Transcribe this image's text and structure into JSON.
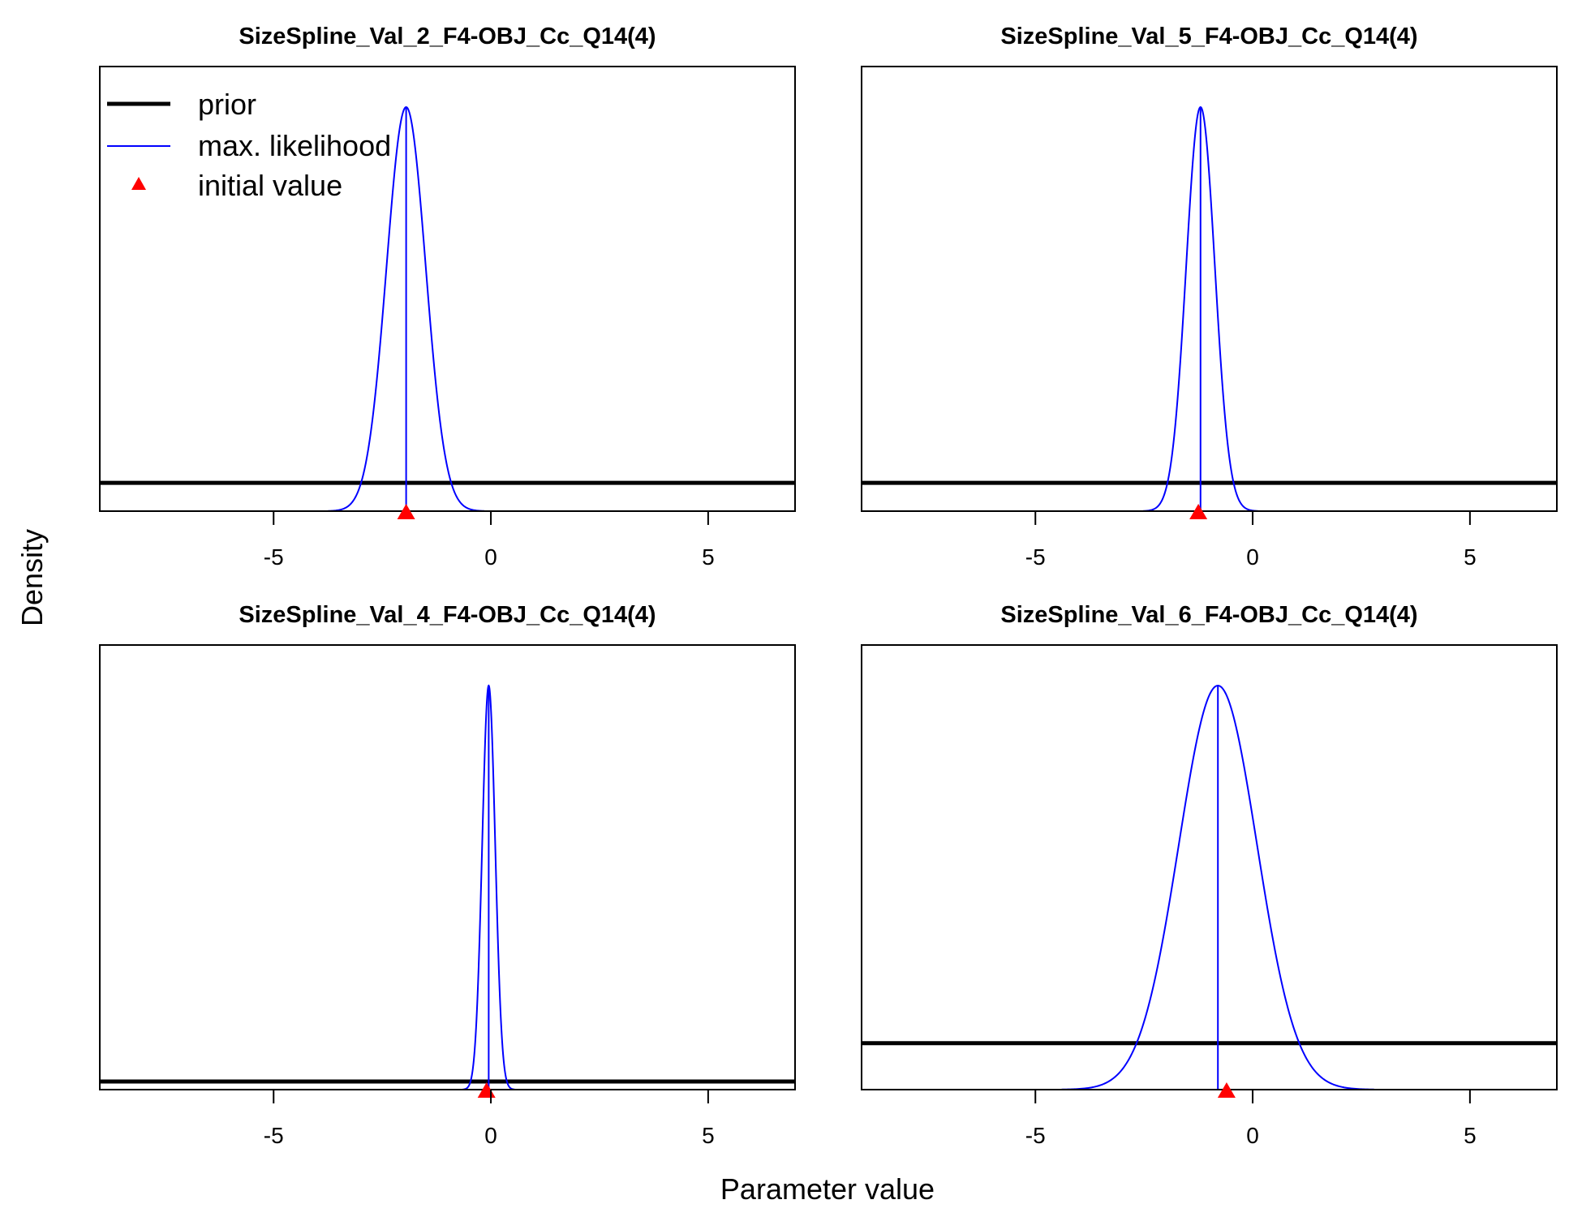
{
  "figure": {
    "ylabel": "Density",
    "xlabel": "Parameter value"
  },
  "legend": {
    "placement": "top-left of first panel",
    "items": [
      {
        "label": "prior",
        "color": "#000000",
        "style": "thick-line"
      },
      {
        "label": "max. likelihood",
        "color": "#0000ff",
        "style": "thin-line"
      },
      {
        "label": "initial value",
        "color": "#ff0000",
        "style": "triangle"
      }
    ]
  },
  "chart_data": [
    {
      "type": "line",
      "title": "SizeSpline_Val_2_F4-OBJ_Cc_Q14(4)",
      "xlim": [
        -9,
        7
      ],
      "xticks": [
        -5,
        0,
        5
      ],
      "tick_labels": [
        "-5",
        "0",
        "5"
      ],
      "series": [
        {
          "name": "max. likelihood",
          "kind": "normal",
          "mean": -1.95,
          "sd": 0.45,
          "color": "#0000ff"
        },
        {
          "name": "prior",
          "kind": "flat",
          "relative_height": 0.07,
          "color": "#000000"
        }
      ],
      "initial_value": -1.95
    },
    {
      "type": "line",
      "title": "SizeSpline_Val_5_F4-OBJ_Cc_Q14(4)",
      "xlim": [
        -9,
        7
      ],
      "xticks": [
        -5,
        0,
        5
      ],
      "tick_labels": [
        "-5",
        "0",
        "5"
      ],
      "series": [
        {
          "name": "max. likelihood",
          "kind": "normal",
          "mean": -1.2,
          "sd": 0.33,
          "color": "#0000ff"
        },
        {
          "name": "prior",
          "kind": "flat",
          "relative_height": 0.07,
          "color": "#000000"
        }
      ],
      "initial_value": -1.25
    },
    {
      "type": "line",
      "title": "SizeSpline_Val_4_F4-OBJ_Cc_Q14(4)",
      "xlim": [
        -9,
        7
      ],
      "xticks": [
        -5,
        0,
        5
      ],
      "tick_labels": [
        "-5",
        "0",
        "5"
      ],
      "series": [
        {
          "name": "max. likelihood",
          "kind": "normal",
          "mean": -0.05,
          "sd": 0.15,
          "color": "#0000ff"
        },
        {
          "name": "prior",
          "kind": "flat",
          "relative_height": 0.02,
          "color": "#000000"
        }
      ],
      "initial_value": -0.1
    },
    {
      "type": "line",
      "title": "SizeSpline_Val_6_F4-OBJ_Cc_Q14(4)",
      "xlim": [
        -9,
        7
      ],
      "xticks": [
        -5,
        0,
        5
      ],
      "tick_labels": [
        "-5",
        "0",
        "5"
      ],
      "series": [
        {
          "name": "max. likelihood",
          "kind": "normal",
          "mean": -0.8,
          "sd": 0.9,
          "color": "#0000ff"
        },
        {
          "name": "prior",
          "kind": "flat",
          "relative_height": 0.115,
          "color": "#000000"
        }
      ],
      "initial_value": -0.6
    }
  ]
}
